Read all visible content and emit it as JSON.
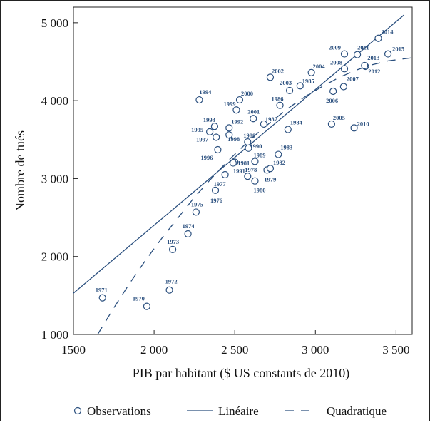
{
  "chart_data": {
    "type": "scatter",
    "xlabel": "PIB par habitant ($ US constants de 2010)",
    "ylabel": "Nombre de tués",
    "xlim": [
      1500,
      3600
    ],
    "ylim": [
      1000,
      5200
    ],
    "x_ticks": [
      {
        "value": 1500,
        "label": "1500"
      },
      {
        "value": 2000,
        "label": "2 000"
      },
      {
        "value": 2500,
        "label": "2 500"
      },
      {
        "value": 3000,
        "label": "3 000"
      },
      {
        "value": 3500,
        "label": "3 500"
      }
    ],
    "y_ticks": [
      {
        "value": 1000,
        "label": "1 000"
      },
      {
        "value": 2000,
        "label": "2 000"
      },
      {
        "value": 3000,
        "label": "3 000"
      },
      {
        "value": 4000,
        "label": "4 000"
      },
      {
        "value": 5000,
        "label": "5 000"
      }
    ],
    "legend": [
      "Observations",
      "Linéaire",
      "Quadratique"
    ],
    "line_color": "#2a4f7e",
    "series": [
      {
        "name": "Observations",
        "kind": "scatter",
        "points": [
          {
            "label": "1970",
            "x": 1955,
            "y": 1360
          },
          {
            "label": "1971",
            "x": 1680,
            "y": 1470
          },
          {
            "label": "1972",
            "x": 2095,
            "y": 1570
          },
          {
            "label": "1973",
            "x": 2115,
            "y": 2090
          },
          {
            "label": "1974",
            "x": 2210,
            "y": 2290
          },
          {
            "label": "1975",
            "x": 2260,
            "y": 2570
          },
          {
            "label": "1976",
            "x": 2380,
            "y": 2850
          },
          {
            "label": "1977",
            "x": 2440,
            "y": 3050
          },
          {
            "label": "1978",
            "x": 2580,
            "y": 3030
          },
          {
            "label": "1979",
            "x": 2700,
            "y": 3110
          },
          {
            "label": "1980",
            "x": 2625,
            "y": 2970
          },
          {
            "label": "1981",
            "x": 2500,
            "y": 3210
          },
          {
            "label": "1982",
            "x": 2720,
            "y": 3130
          },
          {
            "label": "1983",
            "x": 2770,
            "y": 3310
          },
          {
            "label": "1984",
            "x": 2830,
            "y": 3630
          },
          {
            "label": "1985",
            "x": 2905,
            "y": 4190
          },
          {
            "label": "1986",
            "x": 2780,
            "y": 3940
          },
          {
            "label": "1987",
            "x": 2680,
            "y": 3700
          },
          {
            "label": "1988",
            "x": 2580,
            "y": 3470
          },
          {
            "label": "1989",
            "x": 2625,
            "y": 3220
          },
          {
            "label": "1990",
            "x": 2585,
            "y": 3390
          },
          {
            "label": "1991",
            "x": 2490,
            "y": 3200
          },
          {
            "label": "1992",
            "x": 2465,
            "y": 3650
          },
          {
            "label": "1993",
            "x": 2375,
            "y": 3670
          },
          {
            "label": "1994",
            "x": 2280,
            "y": 4010
          },
          {
            "label": "1995",
            "x": 2345,
            "y": 3600
          },
          {
            "label": "1996",
            "x": 2395,
            "y": 3370
          },
          {
            "label": "1997",
            "x": 2385,
            "y": 3530
          },
          {
            "label": "1998",
            "x": 2465,
            "y": 3560
          },
          {
            "label": "1999",
            "x": 2510,
            "y": 3880
          },
          {
            "label": "2000",
            "x": 2530,
            "y": 4010
          },
          {
            "label": "2001",
            "x": 2615,
            "y": 3770
          },
          {
            "label": "2002",
            "x": 2720,
            "y": 4300
          },
          {
            "label": "2003",
            "x": 2840,
            "y": 4130
          },
          {
            "label": "2004",
            "x": 2975,
            "y": 4360
          },
          {
            "label": "2005",
            "x": 3100,
            "y": 3700
          },
          {
            "label": "2006",
            "x": 3110,
            "y": 4120
          },
          {
            "label": "2007",
            "x": 3175,
            "y": 4180
          },
          {
            "label": "2008",
            "x": 3180,
            "y": 4410
          },
          {
            "label": "2009",
            "x": 3180,
            "y": 4600
          },
          {
            "label": "2010",
            "x": 3240,
            "y": 3650
          },
          {
            "label": "2011",
            "x": 3260,
            "y": 4590
          },
          {
            "label": "2012",
            "x": 3310,
            "y": 4440
          },
          {
            "label": "2013",
            "x": 3305,
            "y": 4450
          },
          {
            "label": "2014",
            "x": 3390,
            "y": 4800
          },
          {
            "label": "2015",
            "x": 3450,
            "y": 4600
          }
        ]
      },
      {
        "name": "Linéaire",
        "kind": "line",
        "x": [
          1500,
          3550
        ],
        "y": [
          1530,
          5100
        ]
      },
      {
        "name": "Quadratique",
        "kind": "dashed",
        "x": [
          1650,
          1750,
          1850,
          1950,
          2050,
          2150,
          2250,
          2350,
          2450,
          2550,
          2650,
          2750,
          2850,
          2950,
          3050,
          3150,
          3250,
          3350,
          3450,
          3600
        ],
        "y": [
          1000,
          1340,
          1660,
          1960,
          2240,
          2500,
          2760,
          2990,
          3210,
          3410,
          3600,
          3770,
          3930,
          4070,
          4190,
          4300,
          4390,
          4460,
          4510,
          4550
        ]
      }
    ]
  }
}
